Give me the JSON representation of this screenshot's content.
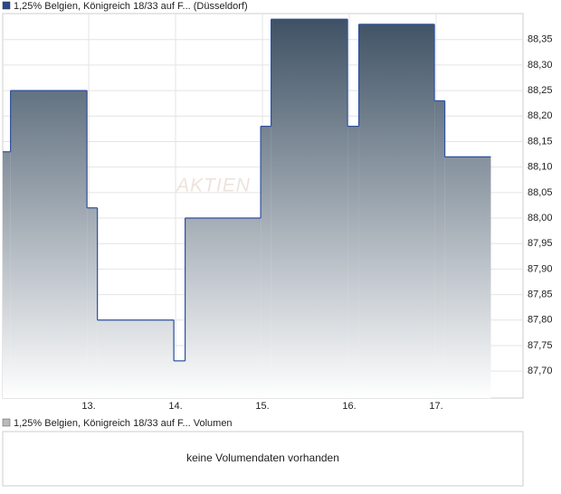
{
  "chart_data": {
    "type": "step-area",
    "x": [
      12.01,
      12.1,
      12.98,
      13.1,
      13.98,
      14.11,
      14.98,
      15.1,
      15.98,
      16.11,
      16.98,
      17.1,
      17.63
    ],
    "series": [
      {
        "name": "1,25% Belgien, Königreich 18/33 auf F... (Düsseldorf)",
        "color": "#2d4f9e",
        "values": [
          88.13,
          88.25,
          88.02,
          87.8,
          87.72,
          88.0,
          88.18,
          88.39,
          88.18,
          88.38,
          88.23,
          88.12,
          88.12
        ]
      }
    ],
    "fill_gradient": [
      "#3e5164",
      "#ffffff"
    ],
    "legend_color": "#2a4a8a",
    "xlim": [
      12.01,
      18.0
    ],
    "xticks": [
      {
        "value": 13,
        "label": "13."
      },
      {
        "value": 14,
        "label": "14."
      },
      {
        "value": 15,
        "label": "15."
      },
      {
        "value": 16,
        "label": "16."
      },
      {
        "value": 17,
        "label": "17."
      }
    ],
    "ylim": [
      87.647,
      88.401
    ],
    "yticks": [
      {
        "value": 87.7,
        "label": "87,70"
      },
      {
        "value": 87.75,
        "label": "87,75"
      },
      {
        "value": 87.8,
        "label": "87,80"
      },
      {
        "value": 87.85,
        "label": "87,85"
      },
      {
        "value": 87.9,
        "label": "87,90"
      },
      {
        "value": 87.95,
        "label": "87,95"
      },
      {
        "value": 88.0,
        "label": "88,00"
      },
      {
        "value": 88.05,
        "label": "88,05"
      },
      {
        "value": 88.1,
        "label": "88,10"
      },
      {
        "value": 88.15,
        "label": "88,15"
      },
      {
        "value": 88.2,
        "label": "88,20"
      },
      {
        "value": 88.25,
        "label": "88,25"
      },
      {
        "value": 88.3,
        "label": "88,30"
      },
      {
        "value": 88.35,
        "label": "88,35"
      }
    ],
    "grid": true,
    "watermark": "AKTIEN"
  },
  "volume_panel": {
    "legend": "1,25% Belgien, Königreich 18/33 auf F... Volumen",
    "legend_color": "#bbbbbb",
    "message": "keine Volumendaten vorhanden"
  }
}
